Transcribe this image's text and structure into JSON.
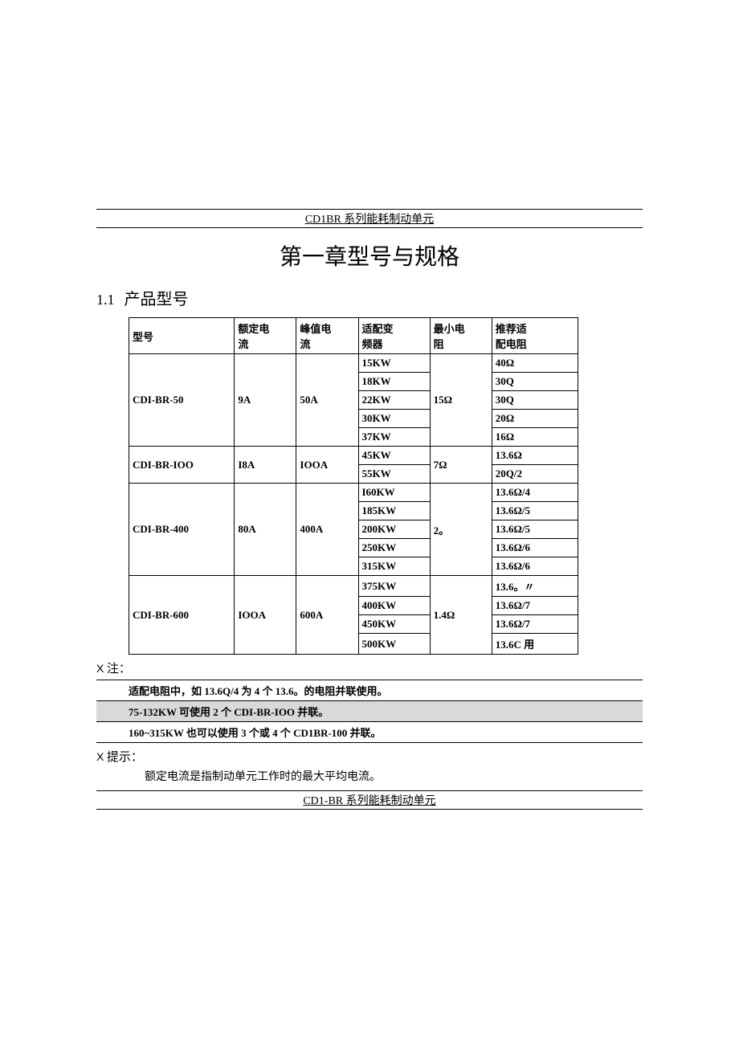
{
  "header": {
    "top_text": "CD1BR 系列能耗制动单元"
  },
  "chapter": {
    "title": "第一章型号与规格"
  },
  "section": {
    "number": "1.1",
    "title": "产品型号"
  },
  "table": {
    "headers": {
      "model_l1": "型号",
      "model_l2": "",
      "rated_l1": "额定电",
      "rated_l2": "流",
      "peak_l1": "峰值电",
      "peak_l2": "流",
      "vfd_l1": "适配变",
      "vfd_l2": "频器",
      "minr_l1": "最小电",
      "minr_l2": "阻",
      "rec_l1": "推荐适",
      "rec_l2": "配电阻"
    },
    "groups": [
      {
        "model": "CDI-BR-50",
        "rated": "9A",
        "peak": "50A",
        "min_r": "15Ω",
        "rows": [
          {
            "vfd": "15KW",
            "rec": "40Ω"
          },
          {
            "vfd": "18KW",
            "rec": "30Q"
          },
          {
            "vfd": "22KW",
            "rec": "30Q"
          },
          {
            "vfd": "30KW",
            "rec": "20Ω"
          },
          {
            "vfd": "37KW",
            "rec": "16Ω"
          }
        ]
      },
      {
        "model": "CDI-BR-IOO",
        "rated": "I8A",
        "peak": "IOOA",
        "min_r": "7Ω",
        "rows": [
          {
            "vfd": "45KW",
            "rec": "13.6Ω"
          },
          {
            "vfd": "55KW",
            "rec": "20Q/2"
          }
        ]
      },
      {
        "model": "CDI-BR-400",
        "rated": "80A",
        "peak": "400A",
        "min_r": "2。",
        "rows": [
          {
            "vfd": "I60KW",
            "rec": "13.6Ω/4"
          },
          {
            "vfd": "185KW",
            "rec": "13.6Ω/5"
          },
          {
            "vfd": "200KW",
            "rec": "13.6Ω/5"
          },
          {
            "vfd": "250KW",
            "rec": "13.6Ω/6"
          },
          {
            "vfd": "315KW",
            "rec": "13.6Ω/6"
          }
        ]
      },
      {
        "model": "CDI-BR-600",
        "rated": "IOOA",
        "peak": "600A",
        "min_r": "1.4Ω",
        "rows": [
          {
            "vfd": "375KW",
            "rec": "13.6。〃"
          },
          {
            "vfd": "400KW",
            "rec": "13.6Ω/7"
          },
          {
            "vfd": "450KW",
            "rec": "13.6Ω/7"
          },
          {
            "vfd": "500KW",
            "rec": "13.6C 用"
          }
        ]
      }
    ]
  },
  "notes": {
    "marker": "X",
    "label": "注：",
    "lines": [
      "适配电阻中，如 13.6Q/4 为 4 个 13.6。的电阻并联使用。",
      "75-132KW 可使用 2 个 CDI-BR-IOO 并联。",
      "160~315KW 也可以使用 3 个或 4 个 CD1BR-100 并联。"
    ]
  },
  "tip": {
    "marker": "X",
    "label": "提示：",
    "text": "额定电流是指制动单元工作时的最大平均电流。"
  },
  "footer": {
    "text": "CD1-BR 系列能耗制动单元"
  }
}
